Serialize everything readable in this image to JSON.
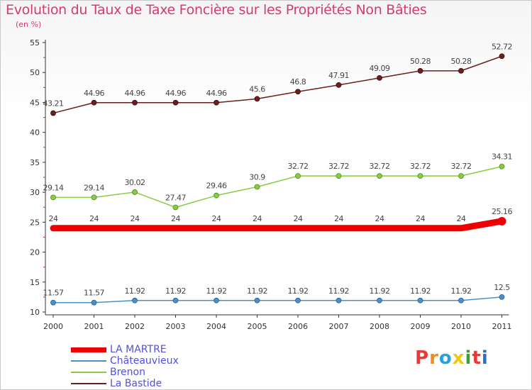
{
  "title": "Evolution du Taux de Taxe Foncière sur les Propriétés Non Bâties",
  "subtitle": "(en %)",
  "logo": {
    "text": "Proxiti",
    "letters": [
      "P",
      "r",
      "o",
      "x",
      "i",
      "t",
      "i"
    ],
    "colors": [
      "#e83a3a",
      "#f08c1e",
      "#2aa0d8",
      "#f0c814",
      "#3aa03a",
      "#e83a3a",
      "#2a70c8"
    ]
  },
  "chart_data": {
    "type": "line",
    "x": [
      "2000",
      "2001",
      "2002",
      "2003",
      "2004",
      "2005",
      "2006",
      "2007",
      "2008",
      "2009",
      "2010",
      "2011"
    ],
    "ylim": [
      10,
      55
    ],
    "yticks": [
      10,
      15,
      20,
      25,
      30,
      35,
      40,
      45,
      50,
      55
    ],
    "grid": false,
    "legend": "bottom-left",
    "series": [
      {
        "name": "LA MARTRE",
        "color": "#ee0000",
        "values": [
          24,
          24,
          24,
          24,
          24,
          24,
          24,
          24,
          24,
          24,
          24,
          25.16
        ],
        "labels": [
          "24",
          "24",
          "24",
          "24",
          "24",
          "24",
          "24",
          "24",
          "24",
          "24",
          "24",
          "25.16"
        ]
      },
      {
        "name": "Châteauvieux",
        "color": "#4a90c8",
        "values": [
          11.57,
          11.57,
          11.92,
          11.92,
          11.92,
          11.92,
          11.92,
          11.92,
          11.92,
          11.92,
          11.92,
          12.5
        ],
        "labels": [
          "11.57",
          "11.57",
          "11.92",
          "11.92",
          "11.92",
          "11.92",
          "11.92",
          "11.92",
          "11.92",
          "11.92",
          "11.92",
          "12.5"
        ]
      },
      {
        "name": "Brenon",
        "color": "#88cc44",
        "values": [
          29.14,
          29.14,
          30.02,
          27.47,
          29.46,
          30.9,
          32.72,
          32.72,
          32.72,
          32.72,
          32.72,
          34.31
        ],
        "labels": [
          "29.14",
          "29.14",
          "30.02",
          "27.47",
          "29.46",
          "30.9",
          "32.72",
          "32.72",
          "32.72",
          "32.72",
          "32.72",
          "34.31"
        ]
      },
      {
        "name": "La Bastide",
        "color": "#6b1f1f",
        "values": [
          43.21,
          44.96,
          44.96,
          44.96,
          44.96,
          45.6,
          46.8,
          47.91,
          49.09,
          50.28,
          50.28,
          52.72
        ],
        "labels": [
          "43.21",
          "44.96",
          "44.96",
          "44.96",
          "44.96",
          "45.6",
          "46.8",
          "47.91",
          "49.09",
          "50.28",
          "50.28",
          "52.72"
        ]
      }
    ]
  }
}
